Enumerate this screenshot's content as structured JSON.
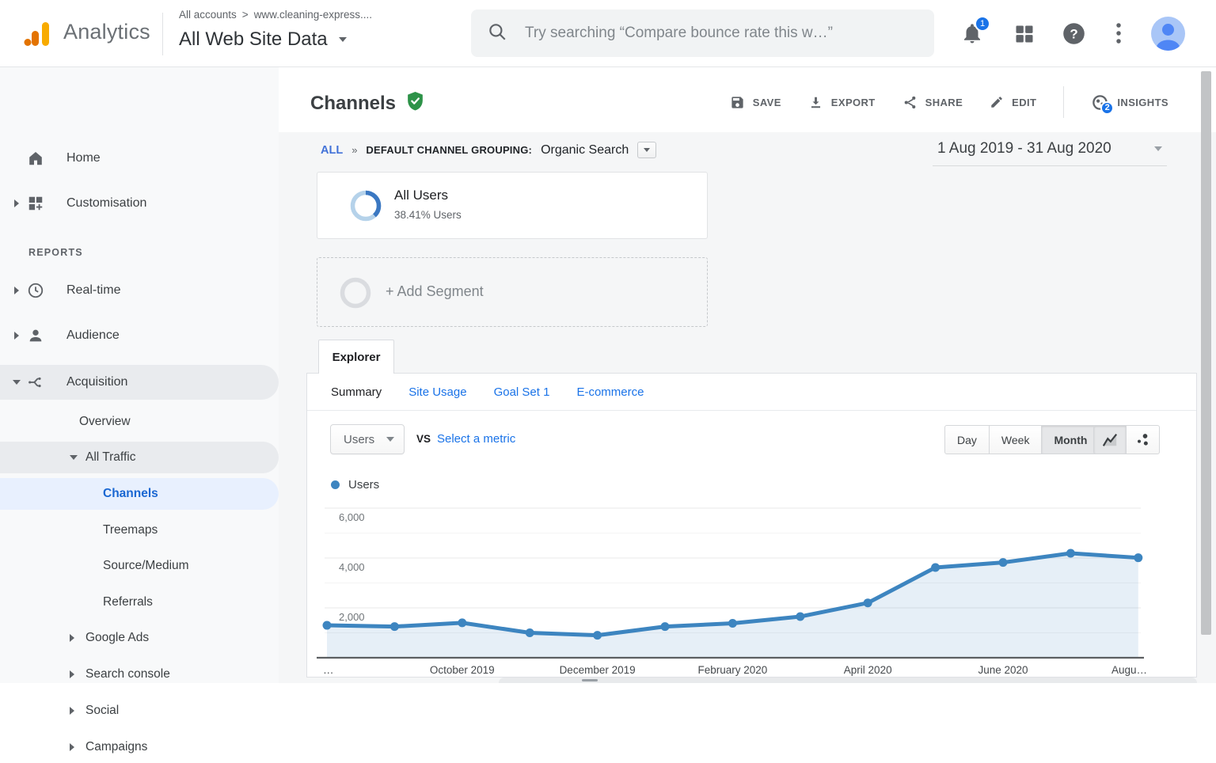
{
  "header": {
    "brand": "Analytics",
    "breadcrumb": {
      "root": "All accounts",
      "separator": ">",
      "account": "www.cleaning-express...."
    },
    "view_name": "All Web Site Data",
    "search": {
      "placeholder": "Try searching “Compare bounce rate this w…”"
    },
    "notifications_count": "1"
  },
  "sidebar": {
    "items": [
      {
        "label": "Home"
      },
      {
        "label": "Customisation"
      },
      {
        "label": "REPORTS"
      },
      {
        "label": "Real-time"
      },
      {
        "label": "Audience"
      },
      {
        "label": "Acquisition"
      },
      {
        "label": "Overview"
      },
      {
        "label": "All Traffic"
      },
      {
        "label": "Channels"
      },
      {
        "label": "Treemaps"
      },
      {
        "label": "Source/Medium"
      },
      {
        "label": "Referrals"
      },
      {
        "label": "Google Ads"
      },
      {
        "label": "Search console"
      },
      {
        "label": "Social"
      },
      {
        "label": "Campaigns"
      }
    ]
  },
  "report": {
    "title": "Channels",
    "actions": {
      "save": "SAVE",
      "export": "EXPORT",
      "share": "SHARE",
      "edit": "EDIT",
      "insights": "INSIGHTS",
      "insights_badge": "2"
    },
    "filter": {
      "all": "ALL",
      "separator": "»",
      "grouping_label": "DEFAULT CHANNEL GROUPING:",
      "grouping_value": "Organic Search"
    },
    "date_range": "1 Aug 2019 - 31 Aug 2020",
    "segments": {
      "all_users": {
        "name": "All Users",
        "share": "38.41% Users"
      },
      "add_segment": "+ Add Segment"
    },
    "explorer": {
      "tab": "Explorer",
      "subtabs": [
        "Summary",
        "Site Usage",
        "Goal Set 1",
        "E-commerce"
      ]
    },
    "metric_bar": {
      "metric": "Users",
      "vs": "VS",
      "select_metric": "Select a metric",
      "granularity": [
        "Day",
        "Week",
        "Month"
      ],
      "granularity_selected": "Month"
    }
  },
  "chart_data": {
    "type": "area",
    "title": "Users by month (Organic Search)",
    "x": [
      "Aug 2019",
      "Sep 2019",
      "Oct 2019",
      "Nov 2019",
      "Dec 2019",
      "Jan 2020",
      "Feb 2020",
      "Mar 2020",
      "Apr 2020",
      "May 2020",
      "Jun 2020",
      "Jul 2020",
      "Aug 2020"
    ],
    "series": [
      {
        "name": "Users",
        "values": [
          1300,
          1250,
          1400,
          1000,
          900,
          1250,
          1380,
          1650,
          2200,
          3620,
          3820,
          4190,
          4010
        ]
      }
    ],
    "x_tick_labels": [
      "…",
      "October 2019",
      "December 2019",
      "February 2020",
      "April 2020",
      "June 2020",
      "Augu…"
    ],
    "x_tick_indices": [
      0,
      2,
      4,
      6,
      8,
      10,
      12
    ],
    "y_ticks": [
      6000,
      4000,
      2000
    ],
    "y_minor_ticks": [
      5000,
      3000,
      1000
    ],
    "ylim": [
      0,
      6380
    ],
    "grid": true,
    "legend_position": "top-left",
    "line_color": "#3d85c0",
    "fill_color": "rgba(61,133,192,0.13)",
    "point_color": "#3d85c0"
  },
  "colors": {
    "accent_blue": "#1a73e8",
    "selected_nav_blue": "#1a67d2",
    "verified_green": "#2d9248",
    "donut_dark": "#3b78c2",
    "donut_light": "#b5d2ea",
    "scrollbar": "#c2c4c6"
  }
}
